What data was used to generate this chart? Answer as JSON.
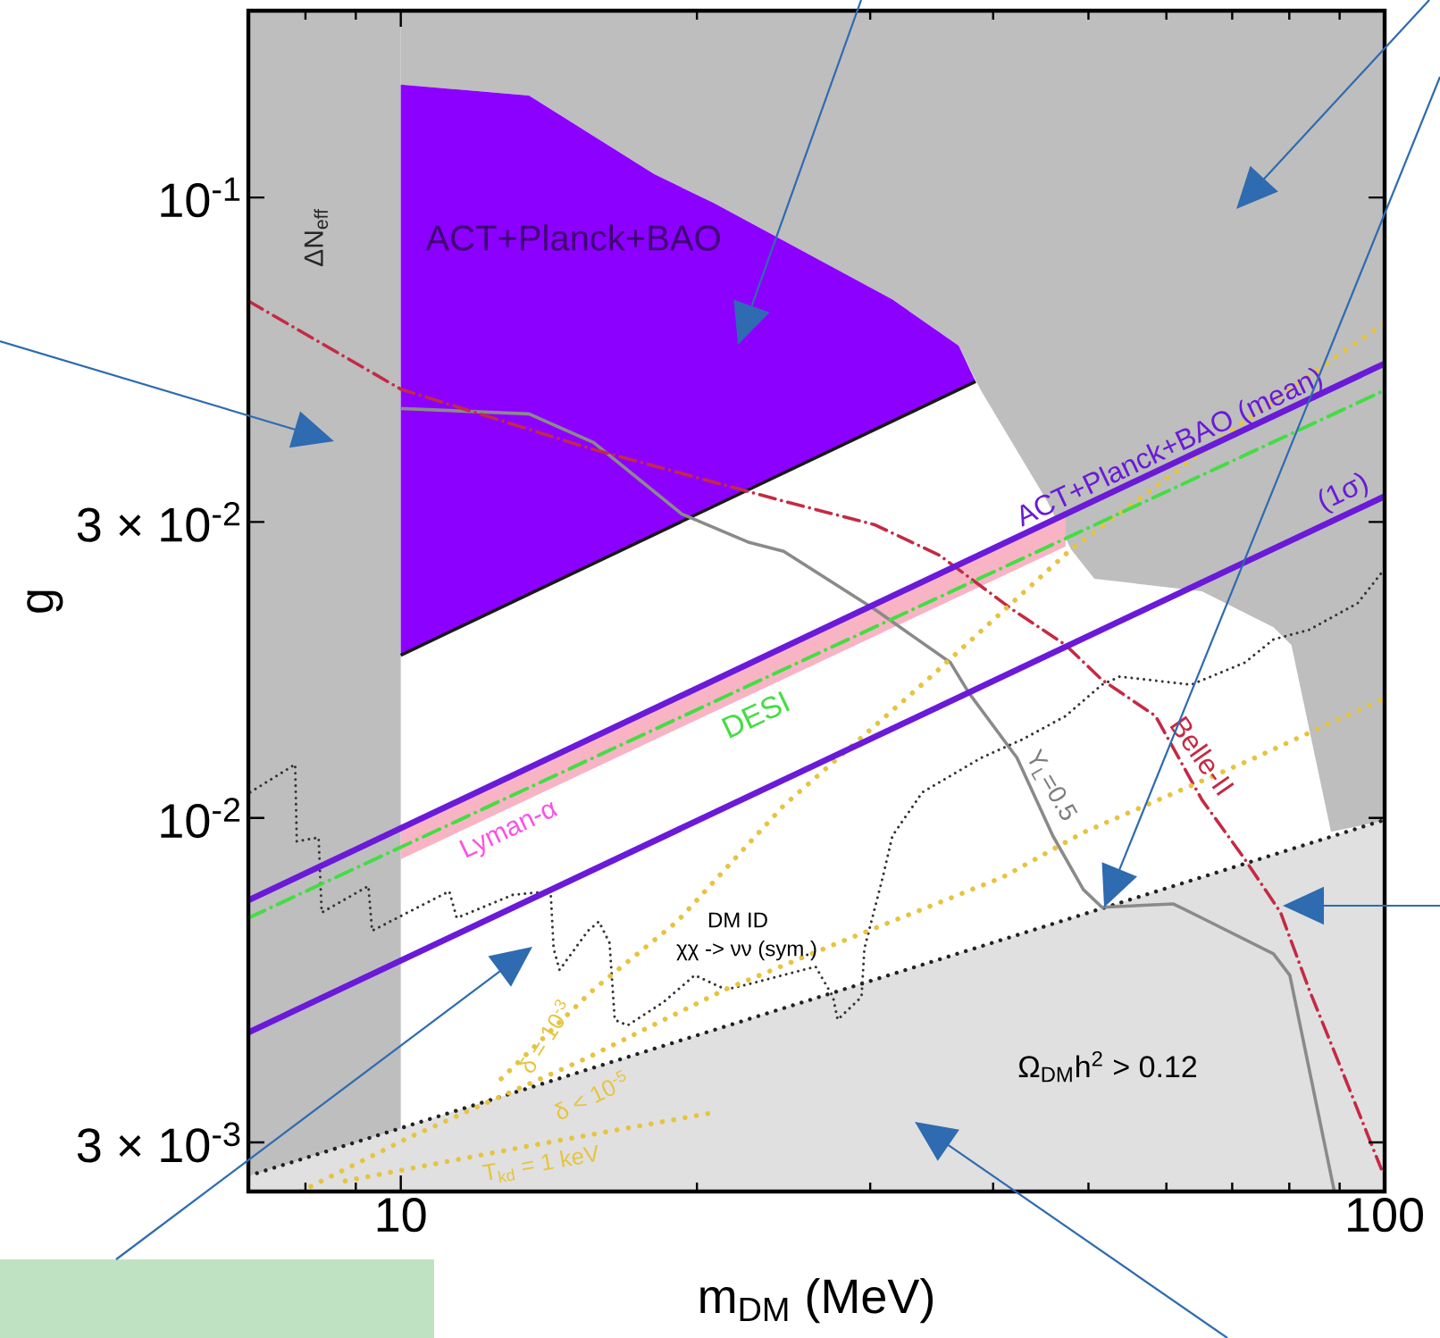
{
  "chart_data": {
    "type": "line",
    "xlabel": "m$_{DM}$ (MeV)",
    "ylabel": "g",
    "log": "xy",
    "xlim": [
      7,
      100
    ],
    "ylim": [
      0.0025,
      0.2
    ],
    "xticks": [
      {
        "value": 8,
        "label": null
      },
      {
        "value": 9,
        "label": null
      },
      10,
      {
        "value": 20,
        "label": null
      },
      {
        "value": 30,
        "label": null
      },
      {
        "value": 40,
        "label": null
      },
      {
        "value": 50,
        "label": null
      },
      {
        "value": 60,
        "label": null
      },
      {
        "value": 70,
        "label": null
      },
      {
        "value": 80,
        "label": null
      },
      {
        "value": 90,
        "label": null
      },
      100
    ],
    "yticks": [
      {
        "value": 0.003,
        "label": "3 × 10$^{-3}$"
      },
      {
        "value": 0.01,
        "label": "10$^{-2}$"
      },
      {
        "value": 0.03,
        "label": "3 × 10$^{-2}$"
      },
      {
        "value": 0.1,
        "label": "10$^{-1}$"
      }
    ],
    "bands": [
      {
        "axis": "x",
        "from": 7,
        "to": 10,
        "label": "ΔN$_{eff}$",
        "color": "#bebebe"
      }
    ],
    "annotations": [
      "ACT+Planck+BAO",
      "Lyman-α",
      "DM ID",
      "χχ -> νν (sym.)"
    ],
    "series": [
      {
        "color": "#bebebe",
        "x": [
          10,
          13.5,
          18.1,
          20.8,
          31.6,
          36.9,
          38.4,
          38.9,
          45.4,
          48.0,
          50.7,
          65.2,
          77.1,
          80.4,
          88.2,
          100
        ],
        "values": [
          null,
          null,
          null,
          null,
          null,
          null,
          null,
          null,
          null,
          null,
          null,
          null,
          null,
          null,
          null,
          null
        ],
        "lower": [
          0.152,
          0.146,
          0.109,
          0.098,
          0.0685,
          0.0577,
          0.0508,
          0.0488,
          0.0324,
          0.0271,
          0.0243,
          0.0232,
          0.0203,
          0.019,
          0.0095,
          0.0099
        ],
        "upper": [
          0.2,
          0.2,
          0.2,
          0.2,
          0.2,
          0.2,
          0.2,
          0.2,
          0.2,
          0.2,
          0.2,
          0.2,
          0.2,
          0.2,
          0.2,
          0.2
        ]
      },
      {
        "type": "area",
        "name": "Ω$_{DM}$h$^{2}$ > 0.12",
        "color": "#e0e0e0",
        "line_style": "dotted",
        "x": [
          7,
          100
        ],
        "values": [
          0.00265,
          0.00993
        ]
      },
      {
        "color": "#8c00ff",
        "x": [
          10,
          13.5,
          18.1,
          20.8,
          31.6,
          36.9,
          38.4
        ],
        "values": [
          null,
          null,
          null,
          null,
          null,
          null,
          null
        ],
        "lower": [
          0.0183,
          0.0229,
          0.0285,
          0.0317,
          0.0434,
          0.0488,
          0.0505
        ],
        "upper": [
          0.152,
          0.146,
          0.109,
          0.098,
          0.0685,
          0.0577,
          0.0505
        ]
      },
      {
        "color": "#f8b4c4",
        "x": [
          10,
          47.4
        ],
        "values": [
          null,
          null
        ],
        "lower": [
          0.00858,
          0.0274
        ],
        "upper": [
          0.00967,
          0.0309
        ]
      },
      {
        "color": "#1a1a1a",
        "line_style": "solid",
        "x": [
          10,
          38.4
        ],
        "values": [
          0.0183,
          0.0505
        ]
      },
      {
        "name": "Y$_{L}$=0.5",
        "color": "#8a8a8a",
        "line_style": "solid",
        "x": [
          10,
          13.5,
          15.7,
          19.3,
          22.6,
          24.5,
          30.3,
          36.2,
          37.8,
          42.3,
          46.0,
          49.4,
          51.6,
          61.0,
          65.2,
          77.1,
          80.1,
          88.9
        ],
        "values": [
          0.0457,
          0.0448,
          0.0403,
          0.0309,
          0.0278,
          0.0269,
          0.0217,
          0.0178,
          0.0159,
          0.0125,
          0.00936,
          0.00767,
          0.00718,
          0.00727,
          0.0069,
          0.00604,
          0.00558,
          0.0025
        ]
      },
      {
        "name": "Belle-II",
        "color": "#c42a44",
        "line_style": "dashdot",
        "x": [
          7,
          10,
          15.5,
          24.5,
          30.3,
          35.3,
          41.8,
          47.4,
          51.6,
          58.5,
          65.2,
          72.1,
          78.4,
          83.8,
          91.2,
          99.2
        ],
        "values": [
          0.0681,
          0.0491,
          0.0395,
          0.0324,
          0.0297,
          0.0265,
          0.0217,
          0.019,
          0.0167,
          0.0146,
          0.0107,
          0.00858,
          0.00704,
          0.00529,
          0.0038,
          0.00272
        ]
      },
      {
        "color": "#333333",
        "line_style": "dotted",
        "x": [
          7.03,
          7.81,
          7.84,
          8.25,
          8.31,
          9.27,
          9.35,
          11.2,
          11.4,
          13.0,
          14.2,
          14.3,
          14.5,
          15.5,
          15.9,
          16.3,
          16.5,
          17.0,
          18.5,
          19.9,
          21.4,
          22.6,
          26.4,
          27.5,
          27.8,
          29.4,
          29.6,
          30.9,
          31.6,
          33.9,
          38.9,
          42.9,
          47.4,
          51.6,
          53.8,
          63.6,
          72.1,
          77.1,
          83.8,
          93.9,
          99.2
        ],
        "values": [
          0.011,
          0.0122,
          0.00917,
          0.0093,
          0.00704,
          0.00777,
          0.00658,
          0.00762,
          0.0069,
          0.00752,
          0.00762,
          0.00616,
          0.00569,
          0.00658,
          0.00681,
          0.00629,
          0.00473,
          0.00463,
          0.00505,
          0.00558,
          0.00529,
          0.0054,
          0.00576,
          0.00515,
          0.00473,
          0.00515,
          0.00616,
          0.00803,
          0.00936,
          0.011,
          0.0125,
          0.0134,
          0.0146,
          0.0164,
          0.0169,
          0.0164,
          0.0178,
          0.0194,
          0.0201,
          0.0222,
          0.0248
        ]
      },
      {
        "name": "δ = 10$^{-3}$",
        "color": "#e6c440",
        "line_style": "dotted",
        "x": [
          12.65,
          15.7,
          19.1,
          24.5,
          34.3,
          48.0,
          70.0,
          100
        ],
        "values": [
          0.0038,
          0.00529,
          0.00681,
          0.01047,
          0.0167,
          0.0271,
          0.0422,
          0.0628
        ]
      },
      {
        "name": "δ < 10$^{-5}$",
        "color": "#e6c440",
        "line_style": "dotted",
        "x": [
          7.91,
          10.17,
          15.34,
          21.36,
          27.48,
          40.93,
          49.43,
          73.0,
          100
        ],
        "values": [
          0.0025,
          0.00305,
          0.00408,
          0.00529,
          0.00624,
          0.00803,
          0.00948,
          0.0124,
          0.0156
        ]
      },
      {
        "name": "T$_{kd}$ = 1 keV",
        "color": "#e6c440",
        "line_style": "dotted",
        "x": [
          8.78,
          13.64,
          20.75
        ],
        "values": [
          0.0026,
          0.00297,
          0.00335
        ]
      },
      {
        "name": "DESI",
        "color": "#44dd44",
        "line_style": "dashdot",
        "x": [
          7,
          100
        ],
        "values": [
          0.0069,
          0.0489
        ]
      },
      {
        "name": "ACT+Planck+BAO (mean)",
        "color": "#6a1ad8",
        "line_style": "solid",
        "x": [
          7,
          100
        ],
        "values": [
          0.00737,
          0.054
        ]
      },
      {
        "name": "(1σ)",
        "color": "#6a1ad8",
        "line_style": "solid",
        "x": [
          7,
          100
        ],
        "values": [
          0.00451,
          0.033
        ]
      }
    ]
  }
}
